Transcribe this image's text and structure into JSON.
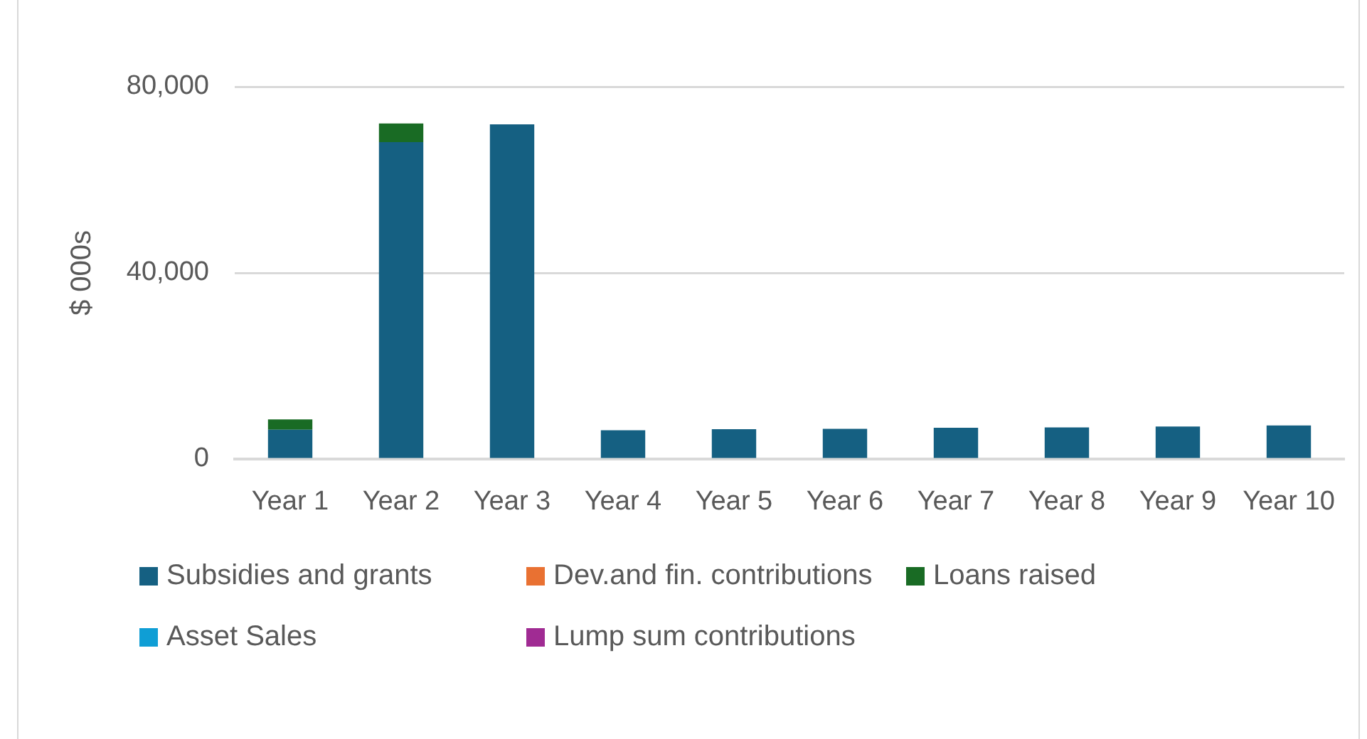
{
  "chart_data": {
    "type": "bar",
    "stacked": true,
    "ylabel": "$ 000s",
    "categories": [
      "Year 1",
      "Year 2",
      "Year 3",
      "Year 4",
      "Year 5",
      "Year 6",
      "Year 7",
      "Year 8",
      "Year 9",
      "Year 10"
    ],
    "ylim": [
      0,
      80000
    ],
    "yticks": [
      0,
      {
        "value": 40000,
        "label": "40,000"
      },
      {
        "value": 80000,
        "label": "80,000"
      }
    ],
    "grid": "y",
    "legend": "bottom",
    "series": [
      {
        "name": "Subsidies and grants",
        "color": "#156082",
        "values": [
          6300,
          68100,
          71900,
          6200,
          6400,
          6500,
          6700,
          6800,
          7000,
          7200
        ]
      },
      {
        "name": "Dev.and fin. contributions",
        "color": "#e97132",
        "values": [
          0,
          0,
          0,
          0,
          0,
          0,
          0,
          0,
          0,
          0
        ]
      },
      {
        "name": "Loans raised",
        "color": "#196b24",
        "values": [
          2200,
          4000,
          0,
          0,
          0,
          0,
          0,
          0,
          0,
          0
        ]
      },
      {
        "name": "Asset Sales",
        "color": "#0f9ed5",
        "values": [
          0,
          0,
          0,
          0,
          0,
          0,
          0,
          0,
          0,
          0
        ]
      },
      {
        "name": "Lump sum contributions",
        "color": "#a02b93",
        "values": [
          0,
          0,
          0,
          0,
          0,
          0,
          0,
          0,
          0,
          0
        ]
      }
    ]
  }
}
